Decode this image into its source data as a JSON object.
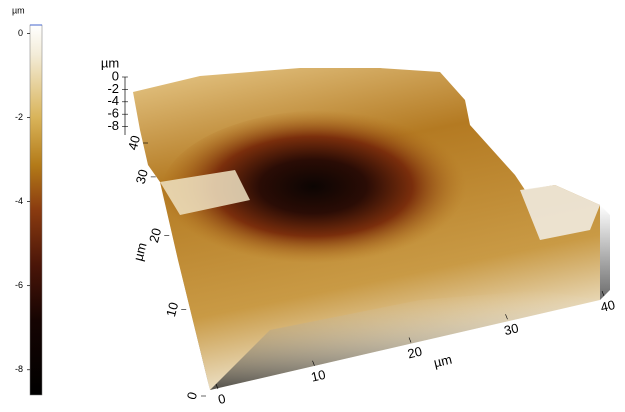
{
  "chart_data": {
    "type": "surface3d",
    "colorbar": {
      "unit": "µm",
      "lim": [
        0.2,
        -8.6
      ],
      "ticks": [
        0,
        -2,
        -4,
        -6,
        -8
      ]
    },
    "xlabel": "µm",
    "xticks": [
      0,
      10,
      20,
      30,
      40
    ],
    "ylabel": "µm",
    "yticks": [
      0,
      10,
      20,
      30,
      40
    ],
    "zlabel": "µm",
    "zticks": [
      0,
      -2,
      -4,
      -6,
      -8
    ]
  }
}
